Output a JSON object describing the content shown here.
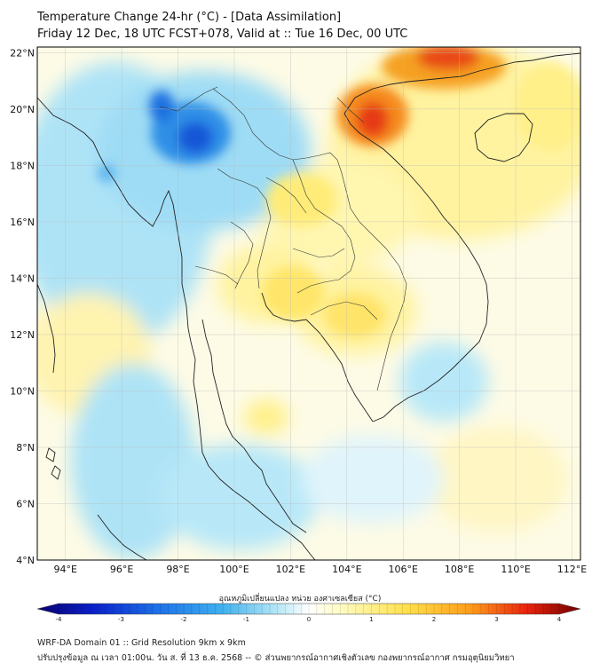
{
  "title": {
    "line1": "Temperature Change 24-hr (°C) - [Data Assimilation]",
    "line2": "Friday 12 Dec, 18 UTC FCST+078, Valid at :: Tue 16 Dec, 00 UTC"
  },
  "map": {
    "lat_labels": [
      "22°N",
      "20°N",
      "18°N",
      "16°N",
      "14°N",
      "12°N",
      "10°N",
      "8°N",
      "6°N",
      "4°N"
    ],
    "lon_labels": [
      "94°E",
      "96°E",
      "98°E",
      "100°E",
      "102°E",
      "104°E",
      "106°E",
      "108°E",
      "110°E",
      "112°E"
    ],
    "lon_range": [
      93,
      112.3
    ],
    "lat_range": [
      4,
      22.2
    ]
  },
  "colorbar": {
    "label": "อุณหภูมิเปลี่ยนแปลง หน่วย องศาเซลเซียส (°C)",
    "ticks": [
      "-4",
      "-3",
      "-2",
      "-1",
      "0",
      "1",
      "2",
      "3",
      "4"
    ],
    "min": -4,
    "max": 4,
    "colors": [
      "#08006e",
      "#0a1fc8",
      "#1c6fe8",
      "#3fb0ee",
      "#b4e6f7",
      "#ffffff",
      "#fffbc0",
      "#ffe04a",
      "#ff9a1a",
      "#e8240e",
      "#6e0000"
    ]
  },
  "footer": {
    "line1": "WRF-DA Domain 01 :: Grid Resolution 9km x 9km",
    "line2": "ปรับปรุงข้อมูล ณ เวลา 01:00น. วัน ส. ที่ 13 ธ.ค. 2568 -- © ส่วนพยากรณ์อากาศเชิงตัวเลข กองพยากรณ์อากาศ กรมอุตุนิยมวิทยา"
  }
}
